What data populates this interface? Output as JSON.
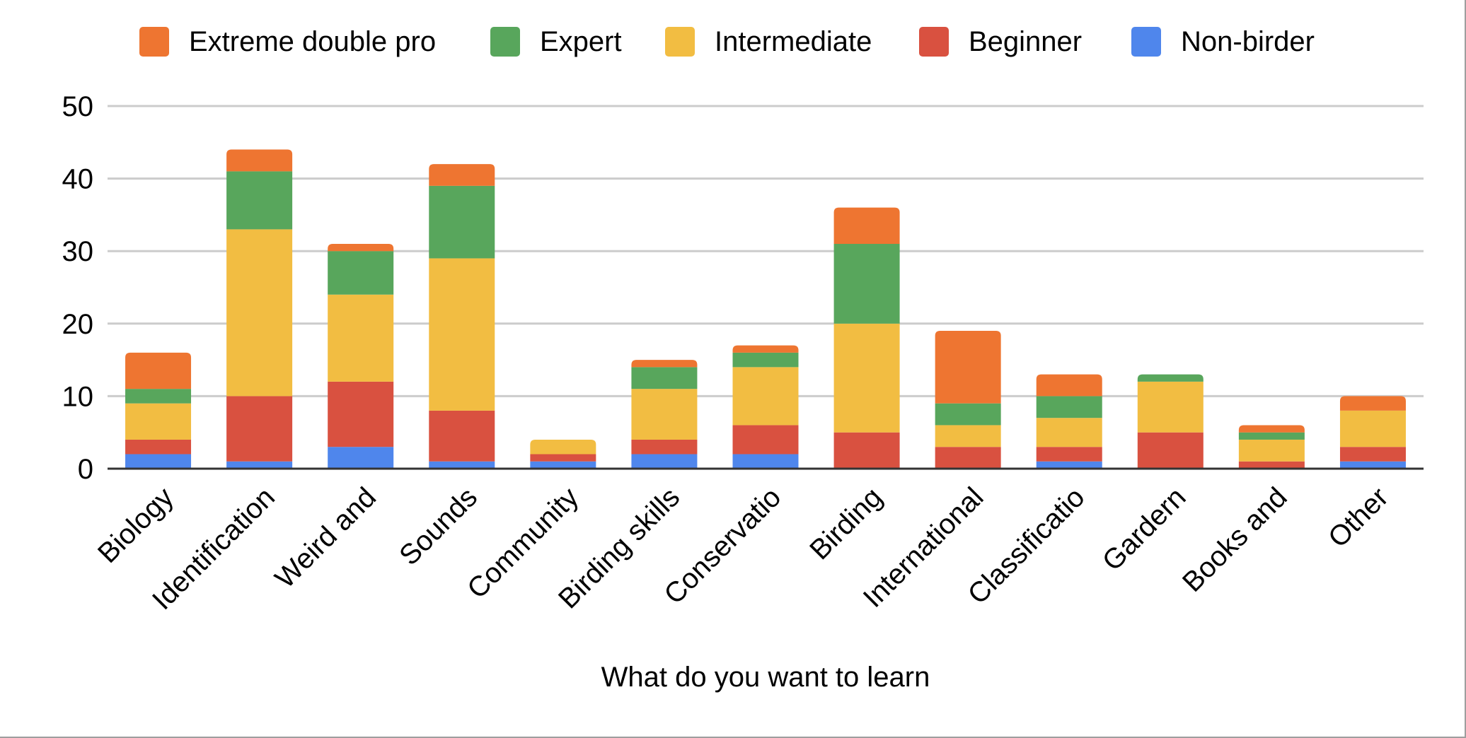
{
  "chart_data": {
    "type": "bar",
    "stacked": true,
    "title": "",
    "xlabel": "What do you want to learn",
    "ylabel": "",
    "ylim": [
      0,
      50
    ],
    "yticks": [
      0,
      10,
      20,
      30,
      40,
      50
    ],
    "grid": true,
    "legend_position": "top",
    "categories": [
      "Biology",
      "Identification",
      "Weird and",
      "Sounds",
      "Community",
      "Birding skills",
      "Conservatio",
      "Birding",
      "International",
      "Classificatio",
      "Gardern",
      "Books and",
      "Other"
    ],
    "series": [
      {
        "name": "Non-birder",
        "color": "#4f86ec",
        "values": [
          2,
          1,
          3,
          1,
          1,
          2,
          2,
          0,
          0,
          1,
          0,
          0,
          1
        ]
      },
      {
        "name": "Beginner",
        "color": "#d95140",
        "values": [
          2,
          9,
          9,
          7,
          1,
          2,
          4,
          5,
          3,
          2,
          5,
          1,
          2
        ]
      },
      {
        "name": "Intermediate",
        "color": "#f2bd42",
        "values": [
          5,
          23,
          12,
          21,
          2,
          7,
          8,
          15,
          3,
          4,
          7,
          3,
          5
        ]
      },
      {
        "name": "Expert",
        "color": "#58a65c",
        "values": [
          2,
          8,
          6,
          10,
          0,
          3,
          2,
          11,
          3,
          3,
          1,
          1,
          0
        ]
      },
      {
        "name": "Extreme double pro",
        "color": "#ee7531",
        "values": [
          5,
          3,
          1,
          3,
          0,
          1,
          1,
          5,
          10,
          3,
          0,
          1,
          2
        ]
      }
    ],
    "legend_order": [
      "Extreme double pro",
      "Expert",
      "Intermediate",
      "Beginner",
      "Non-birder"
    ]
  }
}
